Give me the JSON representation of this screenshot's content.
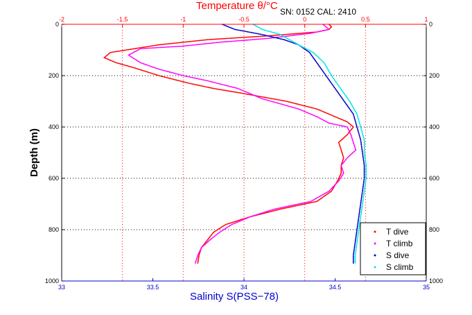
{
  "chart_data": {
    "type": "scatter",
    "title_top": "Temperature θ/°C",
    "xlabel": "Salinity S(PSS−78)",
    "ylabel": "Depth (m)",
    "annotation": "SN: 0152  CAL: 2410",
    "x_salinity_lim": [
      33,
      35
    ],
    "x_temperature_lim": [
      -2,
      1
    ],
    "ylim": [
      0,
      1000
    ],
    "y_reversed": true,
    "grid": true,
    "legend_position": "bottom-right",
    "salinity_ticks": [
      "33",
      "33.5",
      "34",
      "34.5",
      "35"
    ],
    "temperature_ticks": [
      "-2",
      "-1.5",
      "-1",
      "-0.5",
      "0",
      "0.5",
      "1"
    ],
    "depth_ticks_left": [
      "0",
      "200",
      "400",
      "600",
      "800",
      "1000"
    ],
    "depth_ticks_right": [
      "0",
      "200",
      "400",
      "600",
      "800",
      "1000"
    ],
    "colors": {
      "t_dive": "#ff0000",
      "t_climb": "#ff00ff",
      "s_dive": "#0000cc",
      "s_climb": "#00e5e5",
      "temperature_axis": "#ff0000",
      "salinity_axis": "#0000cc"
    },
    "series": [
      {
        "name": "T dive",
        "axis": "temperature",
        "points": [
          [
            0.2,
            0
          ],
          [
            0.22,
            10
          ],
          [
            0.2,
            20
          ],
          [
            0.1,
            30
          ],
          [
            -0.3,
            45
          ],
          [
            -0.8,
            60
          ],
          [
            -1.2,
            80
          ],
          [
            -1.4,
            95
          ],
          [
            -1.6,
            110
          ],
          [
            -1.65,
            130
          ],
          [
            -1.55,
            150
          ],
          [
            -1.4,
            170
          ],
          [
            -1.2,
            200
          ],
          [
            -0.95,
            230
          ],
          [
            -0.75,
            250
          ],
          [
            -0.5,
            270
          ],
          [
            -0.15,
            300
          ],
          [
            0.1,
            330
          ],
          [
            0.25,
            360
          ],
          [
            0.35,
            380
          ],
          [
            0.4,
            400
          ],
          [
            0.35,
            430
          ],
          [
            0.28,
            460
          ],
          [
            0.3,
            490
          ],
          [
            0.32,
            520
          ],
          [
            0.3,
            550
          ],
          [
            0.3,
            580
          ],
          [
            0.27,
            610
          ],
          [
            0.22,
            650
          ],
          [
            0.1,
            690
          ],
          [
            -0.2,
            720
          ],
          [
            -0.45,
            750
          ],
          [
            -0.65,
            780
          ],
          [
            -0.75,
            810
          ],
          [
            -0.8,
            840
          ],
          [
            -0.85,
            870
          ],
          [
            -0.87,
            900
          ],
          [
            -0.88,
            930
          ]
        ]
      },
      {
        "name": "T climb",
        "axis": "temperature",
        "points": [
          [
            0.15,
            0
          ],
          [
            0.2,
            20
          ],
          [
            0.05,
            35
          ],
          [
            -0.3,
            55
          ],
          [
            -0.7,
            70
          ],
          [
            -1.0,
            85
          ],
          [
            -1.35,
            95
          ],
          [
            -1.45,
            120
          ],
          [
            -1.35,
            150
          ],
          [
            -1.2,
            175
          ],
          [
            -1.0,
            200
          ],
          [
            -0.8,
            220
          ],
          [
            -0.55,
            250
          ],
          [
            -0.35,
            290
          ],
          [
            -0.05,
            330
          ],
          [
            0.1,
            360
          ],
          [
            0.2,
            385
          ],
          [
            0.35,
            400
          ],
          [
            0.38,
            430
          ],
          [
            0.4,
            460
          ],
          [
            0.42,
            490
          ],
          [
            0.35,
            520
          ],
          [
            0.3,
            550
          ],
          [
            0.32,
            580
          ],
          [
            0.28,
            610
          ],
          [
            0.2,
            650
          ],
          [
            0.05,
            690
          ],
          [
            -0.25,
            720
          ],
          [
            -0.45,
            750
          ],
          [
            -0.6,
            780
          ],
          [
            -0.7,
            810
          ],
          [
            -0.78,
            840
          ],
          [
            -0.85,
            870
          ],
          [
            -0.88,
            900
          ],
          [
            -0.9,
            930
          ]
        ]
      },
      {
        "name": "S dive",
        "axis": "salinity",
        "points": [
          [
            33.88,
            0
          ],
          [
            33.95,
            20
          ],
          [
            34.1,
            40
          ],
          [
            34.22,
            60
          ],
          [
            34.3,
            80
          ],
          [
            34.36,
            110
          ],
          [
            34.4,
            150
          ],
          [
            34.45,
            200
          ],
          [
            34.5,
            250
          ],
          [
            34.55,
            300
          ],
          [
            34.6,
            350
          ],
          [
            34.62,
            400
          ],
          [
            34.64,
            450
          ],
          [
            34.65,
            500
          ],
          [
            34.66,
            550
          ],
          [
            34.66,
            600
          ],
          [
            34.65,
            650
          ],
          [
            34.64,
            700
          ],
          [
            34.63,
            750
          ],
          [
            34.62,
            800
          ],
          [
            34.61,
            850
          ],
          [
            34.6,
            900
          ],
          [
            34.6,
            930
          ]
        ]
      },
      {
        "name": "S climb",
        "axis": "salinity",
        "points": [
          [
            34.05,
            0
          ],
          [
            34.1,
            20
          ],
          [
            34.2,
            40
          ],
          [
            34.25,
            60
          ],
          [
            34.3,
            80
          ],
          [
            34.38,
            110
          ],
          [
            34.44,
            150
          ],
          [
            34.48,
            200
          ],
          [
            34.53,
            250
          ],
          [
            34.58,
            300
          ],
          [
            34.62,
            350
          ],
          [
            34.64,
            400
          ],
          [
            34.66,
            450
          ],
          [
            34.66,
            500
          ],
          [
            34.67,
            550
          ],
          [
            34.67,
            600
          ],
          [
            34.66,
            650
          ],
          [
            34.65,
            700
          ],
          [
            34.64,
            750
          ],
          [
            34.63,
            800
          ],
          [
            34.62,
            850
          ],
          [
            34.61,
            900
          ],
          [
            34.61,
            930
          ]
        ]
      }
    ]
  }
}
